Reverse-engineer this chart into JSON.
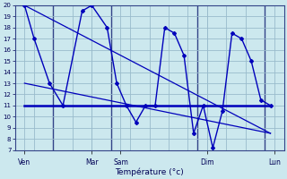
{
  "title": "Température (°c)",
  "bg_color": "#cce8ee",
  "grid_color": "#99bbcc",
  "line_color": "#0000bb",
  "ylim": [
    7,
    20
  ],
  "yticks": [
    7,
    8,
    9,
    10,
    11,
    12,
    13,
    14,
    15,
    16,
    17,
    18,
    19,
    20
  ],
  "xlim": [
    0,
    14
  ],
  "day_labels": [
    "Ven",
    "Mar",
    "Sam",
    "Dim",
    "Lun"
  ],
  "day_positions": [
    0.5,
    4.0,
    5.5,
    10.0,
    13.5
  ],
  "vline_positions": [
    2.0,
    5.0,
    9.5,
    13.0
  ],
  "main_line": {
    "x": [
      0.5,
      1.0,
      1.8,
      2.5,
      3.5,
      4.0,
      4.8,
      5.3,
      5.8,
      6.3,
      6.8,
      7.3,
      7.8,
      8.3,
      8.8,
      9.3,
      9.8,
      10.3,
      10.8,
      11.3,
      11.8,
      12.3,
      12.8,
      13.3
    ],
    "y": [
      20,
      17,
      13,
      11,
      19.5,
      20,
      18,
      13,
      11,
      9.5,
      11,
      11,
      18,
      17.5,
      15.5,
      8.5,
      11,
      7.2,
      10.5,
      17.5,
      17,
      15,
      11.5,
      11
    ]
  },
  "horiz_line": {
    "x": [
      0.5,
      13.3
    ],
    "y": [
      11,
      11
    ]
  },
  "diag_line1": {
    "x": [
      0.5,
      13.3
    ],
    "y": [
      20,
      8.5
    ]
  },
  "diag_line2": {
    "x": [
      0.5,
      13.3
    ],
    "y": [
      13,
      8.5
    ]
  }
}
